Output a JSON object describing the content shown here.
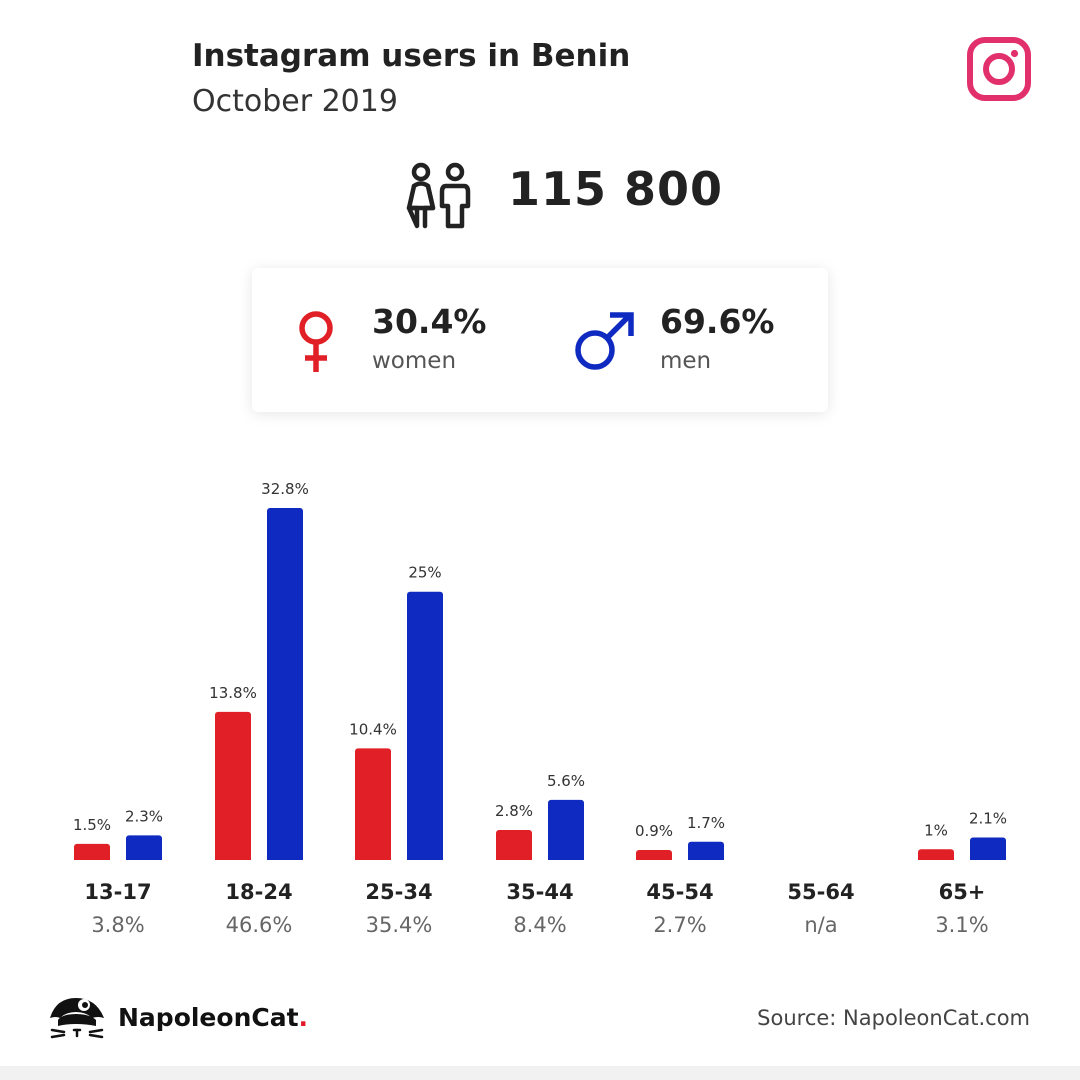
{
  "header": {
    "title": "Instagram users in Benin",
    "subtitle": "October 2019"
  },
  "flag": {
    "green": "#1c8f55",
    "yellow": "#fbd116",
    "red": "#e8112d"
  },
  "icons": {
    "brand": "instagram-icon",
    "people": "people-icon",
    "female": "female-symbol-icon",
    "male": "male-symbol-icon",
    "logo": "napoleoncat-logo-icon"
  },
  "total_users": "115 800",
  "gender": {
    "women": {
      "pct": "30.4%",
      "label": "women",
      "color": "#e01f26"
    },
    "men": {
      "pct": "69.6%",
      "label": "men",
      "color": "#0f2ac1"
    }
  },
  "chart_data": {
    "type": "bar",
    "categories": [
      "13-17",
      "18-24",
      "25-34",
      "35-44",
      "45-54",
      "55-64",
      "65+"
    ],
    "series": [
      {
        "name": "women",
        "color": "#e01f26",
        "values": [
          1.5,
          13.8,
          10.4,
          2.8,
          0.9,
          null,
          1
        ],
        "labels": [
          "1.5%",
          "13.8%",
          "10.4%",
          "2.8%",
          "0.9%",
          "",
          "1%"
        ]
      },
      {
        "name": "men",
        "color": "#0f2ac1",
        "values": [
          2.3,
          32.8,
          25,
          5.6,
          1.7,
          null,
          2.1
        ],
        "labels": [
          "2.3%",
          "32.8%",
          "25%",
          "5.6%",
          "1.7%",
          "",
          "2.1%"
        ]
      }
    ],
    "totals": [
      "3.8%",
      "46.6%",
      "35.4%",
      "8.4%",
      "2.7%",
      "n/a",
      "3.1%"
    ],
    "ylim": [
      0,
      32.8
    ],
    "grid": false,
    "legend": "none"
  },
  "footer": {
    "brand_name": "NapoleonCat",
    "brand_dot": ".",
    "source": "Source: NapoleonCat.com"
  }
}
